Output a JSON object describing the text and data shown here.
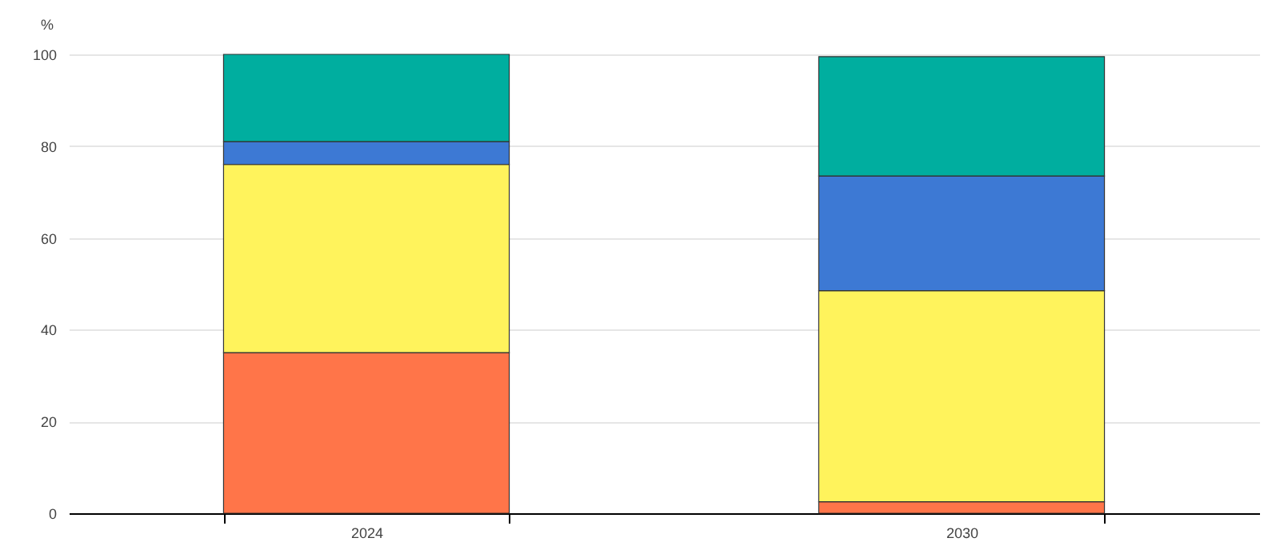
{
  "chart_data": {
    "type": "bar",
    "stacked": true,
    "ylabel": "%",
    "categories": [
      "2024",
      "2030"
    ],
    "series": [
      {
        "color": "#ff7549",
        "values": [
          35,
          2.5
        ]
      },
      {
        "color": "#fff35c",
        "values": [
          41,
          46
        ]
      },
      {
        "color": "#3d79d4",
        "values": [
          5,
          25
        ]
      },
      {
        "color": "#00ae9f",
        "values": [
          19,
          26
        ]
      }
    ],
    "ylim": [
      0,
      100
    ],
    "yticks": [
      0,
      20,
      40,
      60,
      80,
      100
    ],
    "grid": "y"
  }
}
